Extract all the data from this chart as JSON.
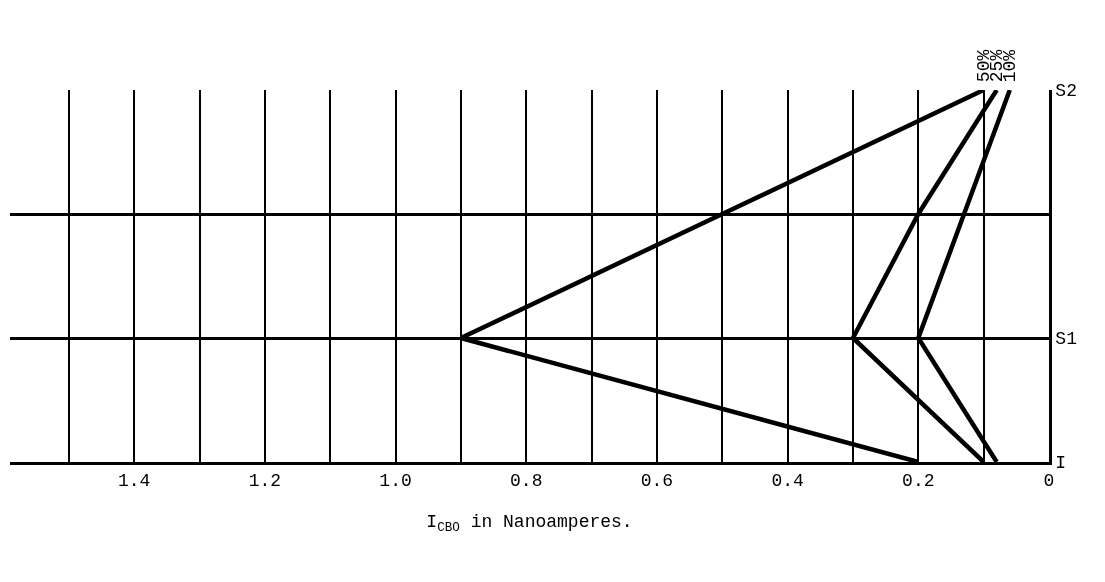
{
  "chart_data": {
    "type": "line",
    "orientation": "horizontal",
    "xlabel": "I$_{CBO}$ in Nanoamperes.",
    "categories": [
      "S2",
      null,
      "S1",
      "I"
    ],
    "series": [
      {
        "name": "50%",
        "color": "#000000",
        "values": [
          0.1,
          0.5,
          0.9,
          0.2
        ]
      },
      {
        "name": "25%",
        "color": "#000000",
        "values": [
          0.08,
          0.2,
          0.3,
          0.1
        ]
      },
      {
        "name": "10%",
        "color": "#000000",
        "values": [
          0.06,
          0.13,
          0.2,
          0.08
        ]
      }
    ],
    "xlim": [
      1.59,
      0
    ],
    "xticks": [
      0,
      {
        "value": 0.1,
        "label": null
      },
      {
        "value": 0.2,
        "label": "0.2"
      },
      {
        "value": 0.3,
        "label": null
      },
      {
        "value": 0.4,
        "label": "0.4"
      },
      {
        "value": 0.5,
        "label": null
      },
      {
        "value": 0.6,
        "label": "0.6"
      },
      {
        "value": 0.7,
        "label": null
      },
      {
        "value": 0.8,
        "label": "0.8"
      },
      {
        "value": 0.9,
        "label": null
      },
      {
        "value": 1.0,
        "label": "1.0"
      },
      {
        "value": 1.1,
        "label": null
      },
      {
        "value": 1.2,
        "label": "1.2"
      },
      {
        "value": 1.3,
        "label": null
      },
      {
        "value": 1.4,
        "label": "1.4"
      },
      {
        "value": 1.5,
        "label": null
      }
    ],
    "grid": true,
    "legend": false,
    "marker": "none",
    "line_style": "solid"
  }
}
